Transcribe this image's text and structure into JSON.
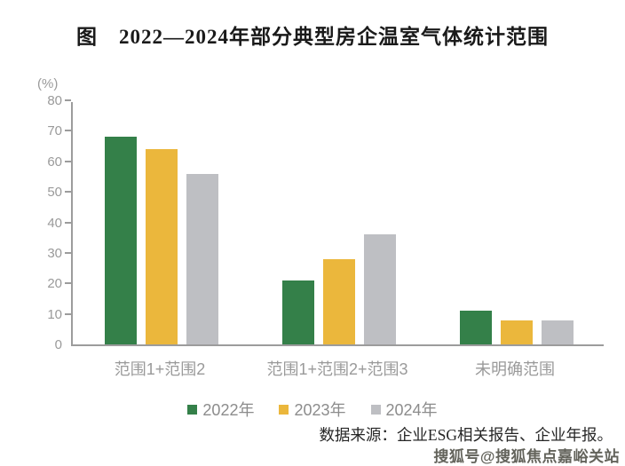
{
  "title": "图　2022—2024年部分典型房企温室气体统计范围",
  "source_note": "数据来源：企业ESG相关报告、企业年报。",
  "watermark": "搜狐号@搜狐焦点嘉峪关站",
  "chart_data": {
    "type": "bar",
    "title": "2022—2024年部分典型房企温室气体统计范围",
    "unit_label": "(%)",
    "categories": [
      "范围1+范围2",
      "范围1+范围2+范围3",
      "未明确范围"
    ],
    "series": [
      {
        "name": "2022年",
        "color": "#348049",
        "values": [
          68,
          21,
          11
        ]
      },
      {
        "name": "2023年",
        "color": "#EBB73C",
        "values": [
          64,
          28,
          8
        ]
      },
      {
        "name": "2024年",
        "color": "#BEBFC3",
        "values": [
          56,
          36,
          8
        ]
      }
    ],
    "ylim": [
      0,
      80
    ],
    "ytick_step": 10,
    "grid": false,
    "legend_position": "bottom"
  },
  "colors": {
    "axis": "#9c9c9c",
    "tick_label": "#9a9a9a",
    "category_label": "#9a9a9a",
    "legend_text": "#8c8c8c",
    "title_text": "#1a1a1a",
    "source_text": "#262626",
    "watermark_text": "#63635b"
  }
}
